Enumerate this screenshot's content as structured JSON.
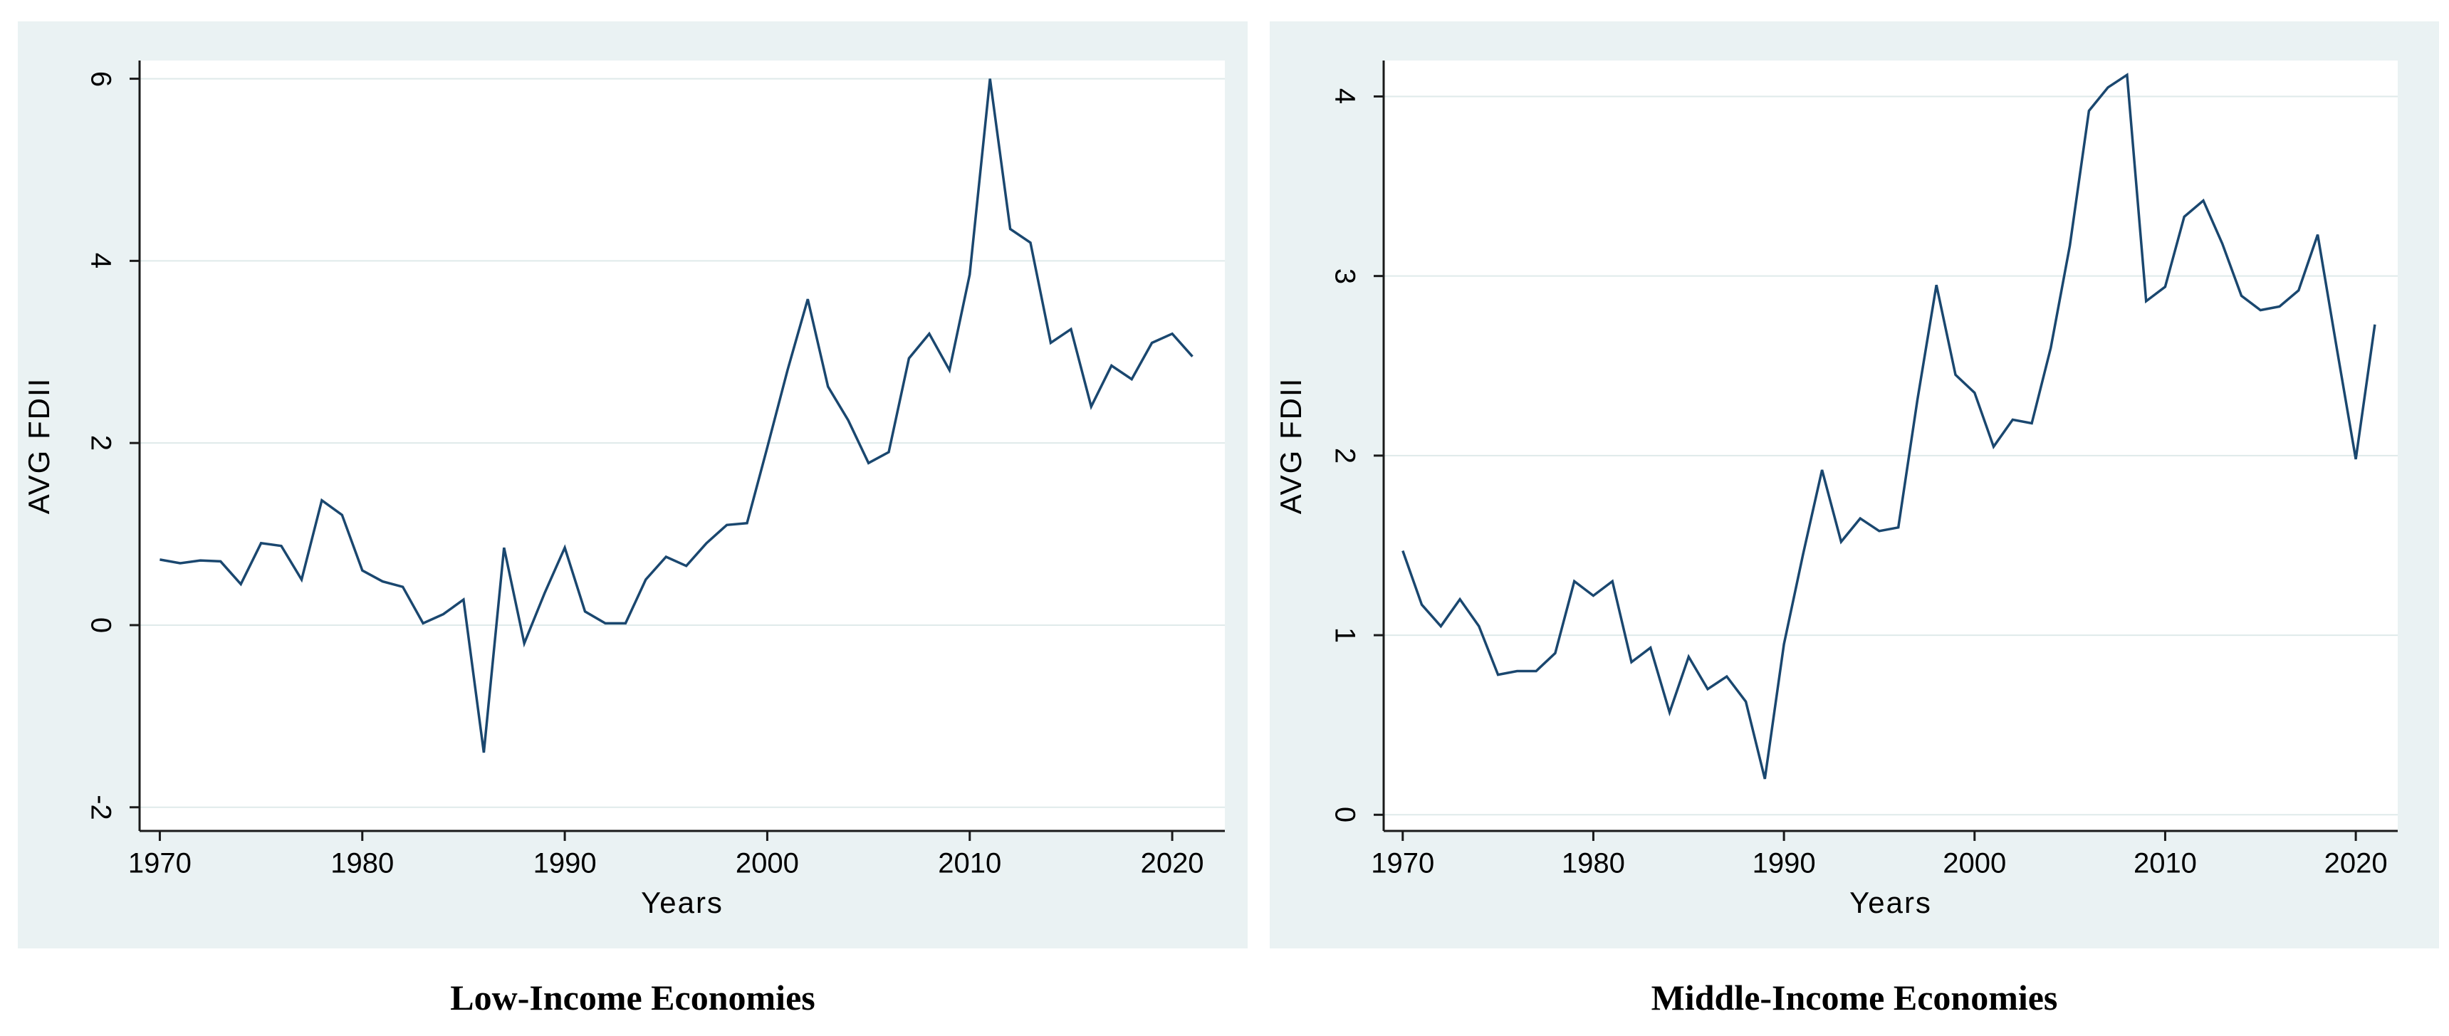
{
  "figure": {
    "panel_bg": "#eaf2f3",
    "plot_bg": "#ffffff",
    "grid_color": "#dfeaea",
    "axis_color": "#1a1a1a",
    "line_color": "#1a476f"
  },
  "chart_data": [
    {
      "type": "line",
      "title": "Low-Income Economies",
      "xlabel": "Years",
      "ylabel": "AVG FDII",
      "legend": "none",
      "grid": true,
      "xlim": [
        1969,
        2022.6
      ],
      "ylim": [
        -2.26,
        6.2
      ],
      "xticks": [
        1970,
        1980,
        1990,
        2000,
        2010,
        2020
      ],
      "yticks": [
        -2,
        0,
        2,
        4,
        6
      ],
      "x": [
        1970,
        1971,
        1972,
        1973,
        1974,
        1975,
        1976,
        1977,
        1978,
        1979,
        1980,
        1981,
        1982,
        1983,
        1984,
        1985,
        1986,
        1987,
        1988,
        1989,
        1990,
        1991,
        1992,
        1993,
        1994,
        1995,
        1996,
        1997,
        1998,
        1999,
        2000,
        2001,
        2002,
        2003,
        2004,
        2005,
        2006,
        2007,
        2008,
        2009,
        2010,
        2011,
        2012,
        2013,
        2014,
        2015,
        2016,
        2017,
        2018,
        2019,
        2020,
        2021
      ],
      "values": [
        0.72,
        0.68,
        0.71,
        0.7,
        0.45,
        0.9,
        0.87,
        0.5,
        1.37,
        1.21,
        0.6,
        0.48,
        0.42,
        0.02,
        0.12,
        0.28,
        -1.4,
        0.85,
        -0.2,
        0.35,
        0.85,
        0.15,
        0.02,
        0.02,
        0.5,
        0.75,
        0.65,
        0.9,
        1.1,
        1.12,
        1.95,
        2.8,
        3.58,
        2.62,
        2.25,
        1.78,
        1.9,
        2.93,
        3.2,
        2.8,
        3.85,
        6.0,
        4.35,
        4.2,
        3.1,
        3.25,
        2.4,
        2.85,
        2.7,
        3.1,
        3.2,
        2.95
      ]
    },
    {
      "type": "line",
      "title": "Middle-Income Economies",
      "xlabel": "Years",
      "ylabel": "AVG FDII",
      "legend": "none",
      "grid": true,
      "xlim": [
        1969,
        2022.2
      ],
      "ylim": [
        -0.09,
        4.2
      ],
      "xticks": [
        1970,
        1980,
        1990,
        2000,
        2010,
        2020
      ],
      "yticks": [
        0,
        1,
        2,
        3,
        4
      ],
      "x": [
        1970,
        1971,
        1972,
        1973,
        1974,
        1975,
        1976,
        1977,
        1978,
        1979,
        1980,
        1981,
        1982,
        1983,
        1984,
        1985,
        1986,
        1987,
        1988,
        1989,
        1990,
        1991,
        1992,
        1993,
        1994,
        1995,
        1996,
        1997,
        1998,
        1999,
        2000,
        2001,
        2002,
        2003,
        2004,
        2005,
        2006,
        2007,
        2008,
        2009,
        2010,
        2011,
        2012,
        2013,
        2014,
        2015,
        2016,
        2017,
        2018,
        2019,
        2020,
        2021
      ],
      "values": [
        1.47,
        1.17,
        1.05,
        1.2,
        1.05,
        0.78,
        0.8,
        0.8,
        0.9,
        1.3,
        1.22,
        1.3,
        0.85,
        0.93,
        0.57,
        0.88,
        0.7,
        0.77,
        0.63,
        0.2,
        0.95,
        1.45,
        1.92,
        1.52,
        1.65,
        1.58,
        1.6,
        2.31,
        2.95,
        2.45,
        2.35,
        2.05,
        2.2,
        2.18,
        2.6,
        3.17,
        3.92,
        4.05,
        4.12,
        2.86,
        2.94,
        3.33,
        3.42,
        3.18,
        2.89,
        2.81,
        2.83,
        2.92,
        3.23,
        2.6,
        1.98,
        2.73
      ]
    }
  ]
}
